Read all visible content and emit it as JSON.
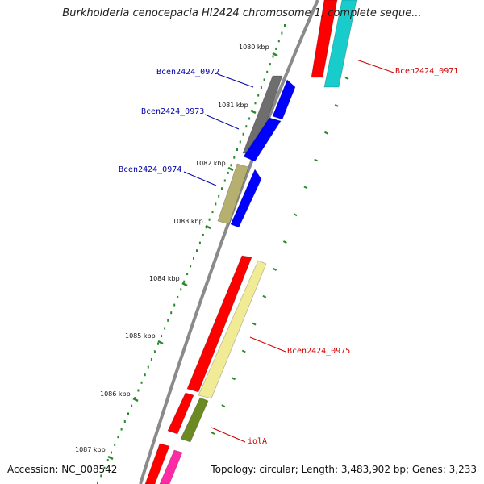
{
  "title": "Burkholderia cenocepacia HI2424 chromosome 1, complete seque...",
  "footer": {
    "accession": "Accession: NC_008542",
    "topology": "Topology: circular; Length: 3,483,902 bp; Genes: 3,233"
  },
  "ticks": [
    "1080 kbp",
    "1081 kbp",
    "1082 kbp",
    "1083 kbp",
    "1084 kbp",
    "1085 kbp",
    "1086 kbp",
    "1087 kbp"
  ],
  "genes": [
    {
      "name": "Bcen2424_0971",
      "color": "#cc0000"
    },
    {
      "name": "Bcen2424_0972",
      "color": "#0000aa"
    },
    {
      "name": "Bcen2424_0973",
      "color": "#0000aa"
    },
    {
      "name": "Bcen2424_0974",
      "color": "#0000aa"
    },
    {
      "name": "Bcen2424_0975",
      "color": "#cc0000"
    },
    {
      "name": "iolA",
      "color": "#cc0000"
    }
  ],
  "colors": {
    "backbone": "#8a8a8a",
    "tick": "#2a8a2a",
    "red": "#ff0000",
    "cyan": "#19cccc",
    "grey": "#6e6e6e",
    "blue": "#0000ff",
    "khaki": "#b5b070",
    "pale_yellow": "#f2eb96",
    "olive": "#6b8a22",
    "magenta": "#ff2aa6"
  }
}
